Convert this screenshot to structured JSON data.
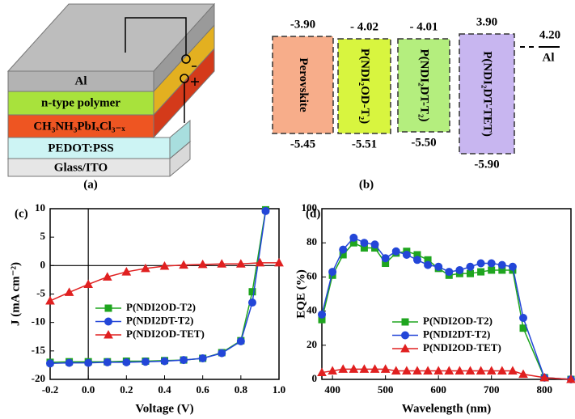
{
  "device": {
    "label": "(a)",
    "layers": [
      "Al",
      "n-type polymer",
      "CH₃NH₃PbIₓCl₃₋ₓ",
      "PEDOT:PSS",
      "Glass/ITO"
    ]
  },
  "energy_levels": {
    "label": "(b)",
    "materials": [
      {
        "name": "Perovskite",
        "lumo": "-3.90",
        "homo": "-5.45",
        "color": "#f7ad8a"
      },
      {
        "name": "P(NDI₂OD-T₂)",
        "lumo": "- 4.02",
        "homo": "-5.51",
        "color": "#d8f53f"
      },
      {
        "name": "P(NDI₂DT-T₂)",
        "lumo": "- 4.01",
        "homo": "-5.50",
        "color": "#b4ee7e"
      },
      {
        "name": "P(NDI₂DT-TET)",
        "lumo": "3.90",
        "homo": "-5.90",
        "color": "#c8b6f0"
      }
    ],
    "electrode": {
      "name": "Al",
      "level": "4.20"
    }
  },
  "chart_data": [
    {
      "type": "line",
      "label": "(c)",
      "x_label": "Voltage (V)",
      "y_label": "J (mA cm⁻²)",
      "xlim": [
        -0.2,
        1.0
      ],
      "ylim": [
        -20,
        10
      ],
      "xticks": [
        -0.2,
        {
          "value": 0,
          "label": "0.0"
        },
        0.2,
        0.4,
        0.6,
        0.8,
        {
          "value": 1,
          "label": "1.0"
        }
      ],
      "yticks": [
        -20,
        -15,
        -10,
        -5,
        0,
        5,
        10
      ],
      "zero_lines": true,
      "legend": "lower-left",
      "series": [
        {
          "name": "P(NDI2OD-T2)",
          "color": "#1fa51f",
          "marker": "square",
          "x": [
            -0.2,
            -0.1,
            0,
            0.1,
            0.2,
            0.3,
            0.4,
            0.5,
            0.6,
            0.7,
            0.8,
            0.86,
            0.93
          ],
          "values": [
            -17.0,
            -16.9,
            -16.9,
            -16.9,
            -16.8,
            -16.8,
            -16.7,
            -16.6,
            -16.3,
            -15.3,
            -13.2,
            -4.6,
            9.8
          ]
        },
        {
          "name": "P(NDI2DT-T2)",
          "color": "#2346d8",
          "marker": "circle",
          "x": [
            -0.2,
            -0.1,
            0,
            0.1,
            0.2,
            0.3,
            0.4,
            0.5,
            0.6,
            0.7,
            0.8,
            0.86,
            0.93
          ],
          "values": [
            -17.2,
            -17.1,
            -17.1,
            -17.0,
            -17.0,
            -16.9,
            -16.8,
            -16.6,
            -16.3,
            -15.4,
            -13.3,
            -6.5,
            9.6
          ]
        },
        {
          "name": "P(NDI2OD-TET)",
          "color": "#e02020",
          "marker": "triangle",
          "x": [
            -0.2,
            -0.1,
            0,
            0.1,
            0.2,
            0.3,
            0.4,
            0.5,
            0.6,
            0.7,
            0.8,
            0.9,
            1.0
          ],
          "values": [
            -6.2,
            -4.7,
            -3.3,
            -2.0,
            -1.1,
            -0.5,
            -0.1,
            0.1,
            0.2,
            0.3,
            0.3,
            0.5,
            0.5
          ]
        }
      ]
    },
    {
      "type": "line",
      "label": "(d)",
      "x_label": "Wavelength (nm)",
      "y_label": "EQE (%)",
      "xlim": [
        380,
        850
      ],
      "ylim": [
        0,
        100
      ],
      "xticks": [
        400,
        500,
        600,
        700,
        800
      ],
      "yticks": [
        0,
        20,
        40,
        60,
        80,
        100
      ],
      "zero_lines": false,
      "legend": "center",
      "series": [
        {
          "name": "P(NDI2OD-T2)",
          "color": "#1fa51f",
          "marker": "square",
          "x": [
            380,
            400,
            420,
            440,
            460,
            480,
            500,
            520,
            540,
            560,
            580,
            600,
            620,
            640,
            660,
            680,
            700,
            720,
            740,
            760,
            800,
            850
          ],
          "values": [
            35,
            61,
            73,
            80,
            77,
            77,
            68,
            74,
            75,
            73,
            70,
            65,
            61,
            62,
            62,
            63,
            64,
            64,
            64,
            30,
            1,
            0
          ]
        },
        {
          "name": "P(NDI2DT-T2)",
          "color": "#2346d8",
          "marker": "circle",
          "x": [
            380,
            400,
            420,
            440,
            460,
            480,
            500,
            520,
            540,
            560,
            580,
            600,
            620,
            640,
            660,
            680,
            700,
            720,
            740,
            760,
            800,
            850
          ],
          "values": [
            38,
            63,
            76,
            83,
            80,
            79,
            71,
            75,
            73,
            70,
            67,
            66,
            63,
            64,
            66,
            68,
            68,
            67,
            66,
            36,
            1,
            0
          ]
        },
        {
          "name": "P(NDI2OD-TET)",
          "color": "#e02020",
          "marker": "triangle",
          "x": [
            380,
            400,
            420,
            440,
            460,
            480,
            500,
            520,
            540,
            560,
            580,
            600,
            620,
            640,
            660,
            680,
            700,
            720,
            740,
            760,
            800,
            850
          ],
          "values": [
            4,
            5,
            6,
            6,
            6,
            6,
            6,
            5,
            5,
            5,
            5,
            5,
            5,
            5,
            5,
            5,
            5,
            5,
            5,
            3,
            1,
            0
          ]
        }
      ]
    }
  ]
}
